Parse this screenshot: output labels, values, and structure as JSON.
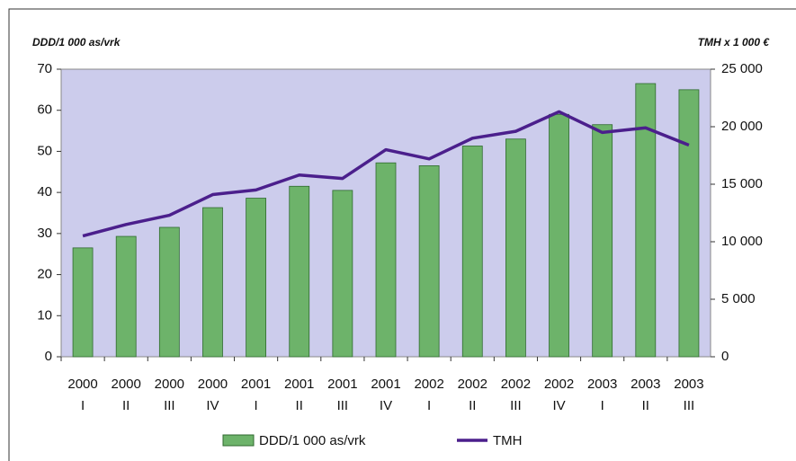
{
  "chart_data": {
    "type": "bar_line",
    "y_label": "DDD/1 000 as/vrk",
    "y2_label": "TMH x 1 000 €",
    "categories": [
      [
        "2000",
        "I"
      ],
      [
        "2000",
        "II"
      ],
      [
        "2000",
        "III"
      ],
      [
        "2000",
        "IV"
      ],
      [
        "2001",
        "I"
      ],
      [
        "2001",
        "II"
      ],
      [
        "2001",
        "III"
      ],
      [
        "2001",
        "IV"
      ],
      [
        "2002",
        "I"
      ],
      [
        "2002",
        "II"
      ],
      [
        "2002",
        "III"
      ],
      [
        "2002",
        "IV"
      ],
      [
        "2003",
        "I"
      ],
      [
        "2003",
        "II"
      ],
      [
        "2003",
        "III"
      ]
    ],
    "series": [
      {
        "name": "DDD/1 000 as/vrk",
        "type": "bar",
        "color": "#6db36a",
        "values": [
          26.5,
          29.3,
          31.5,
          36.3,
          38.6,
          41.5,
          40.5,
          47.2,
          46.5,
          51.3,
          53,
          59,
          56.5,
          66.5,
          65
        ]
      },
      {
        "name": "TMH",
        "type": "line",
        "axis": "y2",
        "color": "#4b1f8c",
        "values": [
          10500,
          11500,
          12300,
          14100,
          14500,
          15800,
          15500,
          18000,
          17200,
          19000,
          19600,
          21300,
          19500,
          19900,
          18400
        ]
      }
    ],
    "ylim": [
      0,
      70
    ],
    "yticks": [
      0,
      10,
      20,
      30,
      40,
      50,
      60,
      70
    ],
    "y2lim": [
      0,
      25000
    ],
    "y2ticks": [
      0,
      {
        "value": 5000,
        "label": "5 000"
      },
      {
        "value": 10000,
        "label": "10 000"
      },
      {
        "value": 15000,
        "label": "15 000"
      },
      {
        "value": 20000,
        "label": "20 000"
      },
      {
        "value": 25000,
        "label": "25 000"
      }
    ],
    "legend": "bottom"
  }
}
